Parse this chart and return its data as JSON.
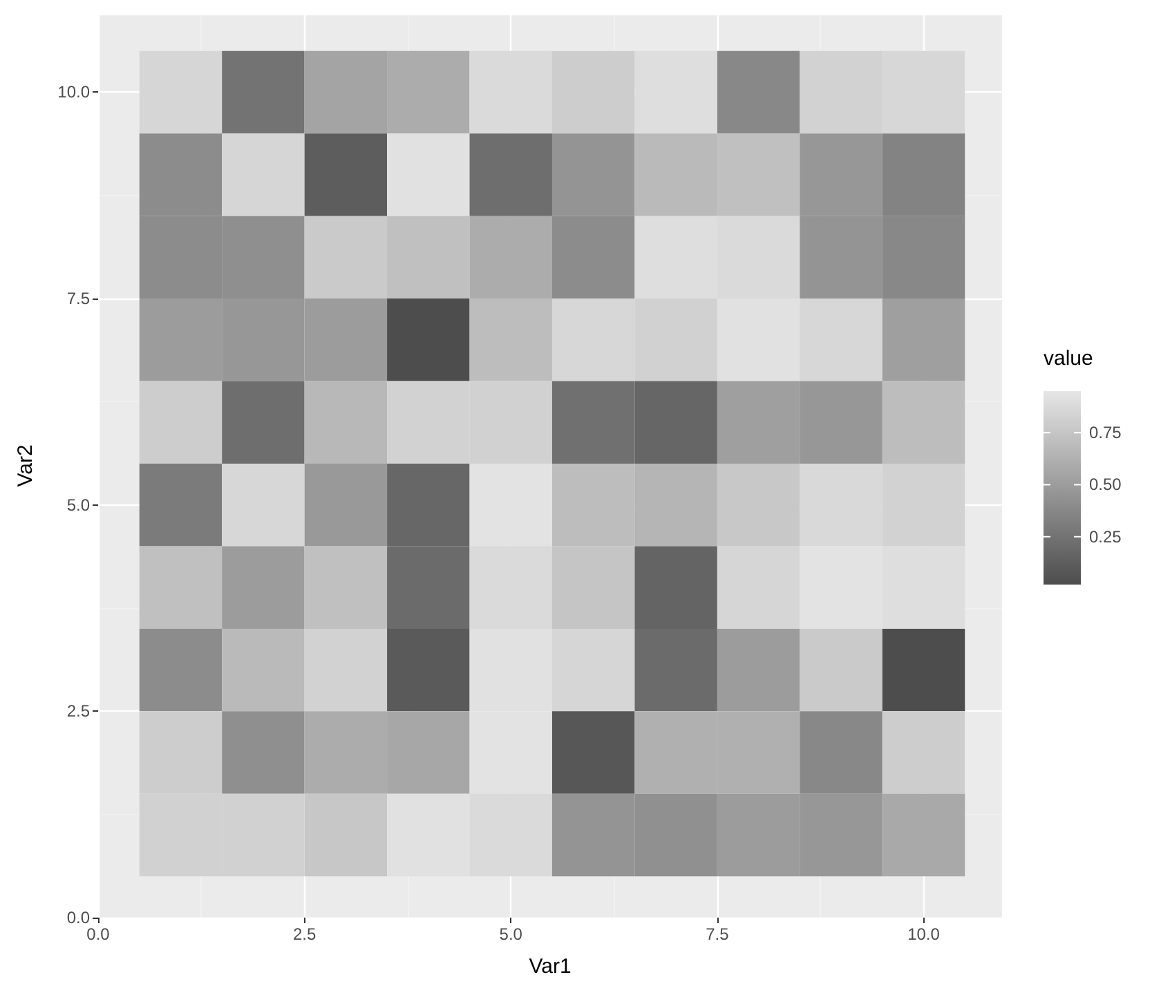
{
  "chart_data": {
    "type": "heatmap",
    "xlabel": "Var1",
    "ylabel": "Var2",
    "legend_title": "value",
    "x": [
      1,
      2,
      3,
      4,
      5,
      6,
      7,
      8,
      9,
      10
    ],
    "y": [
      10,
      9,
      8,
      7,
      6,
      5,
      4,
      3,
      2,
      1
    ],
    "cells": [
      [
        0.85,
        0.25,
        0.55,
        0.6,
        0.88,
        0.8,
        0.9,
        0.38,
        0.83,
        0.86
      ],
      [
        0.4,
        0.85,
        0.12,
        0.92,
        0.22,
        0.45,
        0.68,
        0.72,
        0.47,
        0.35
      ],
      [
        0.4,
        0.42,
        0.78,
        0.72,
        0.6,
        0.4,
        0.9,
        0.88,
        0.45,
        0.38
      ],
      [
        0.5,
        0.47,
        0.5,
        0.02,
        0.7,
        0.86,
        0.82,
        0.92,
        0.86,
        0.52
      ],
      [
        0.8,
        0.22,
        0.67,
        0.83,
        0.82,
        0.23,
        0.17,
        0.52,
        0.47,
        0.7
      ],
      [
        0.3,
        0.86,
        0.48,
        0.18,
        0.93,
        0.7,
        0.65,
        0.77,
        0.87,
        0.83
      ],
      [
        0.72,
        0.5,
        0.72,
        0.2,
        0.88,
        0.75,
        0.16,
        0.85,
        0.93,
        0.9
      ],
      [
        0.4,
        0.68,
        0.83,
        0.1,
        0.92,
        0.85,
        0.2,
        0.5,
        0.78,
        0.02
      ],
      [
        0.8,
        0.42,
        0.6,
        0.57,
        0.93,
        0.08,
        0.62,
        0.62,
        0.38,
        0.8
      ],
      [
        0.82,
        0.82,
        0.76,
        0.92,
        0.88,
        0.45,
        0.43,
        0.5,
        0.47,
        0.58
      ]
    ],
    "xlim": [
      0,
      10.95
    ],
    "ylim": [
      0,
      10.95
    ],
    "xticks": [
      {
        "value": 0,
        "label": "0.0"
      },
      {
        "value": 2.5,
        "label": "2.5"
      },
      {
        "value": 5,
        "label": "5.0"
      },
      {
        "value": 7.5,
        "label": "7.5"
      },
      {
        "value": 10,
        "label": "10.0"
      }
    ],
    "yticks": [
      {
        "value": 0,
        "label": "0.0"
      },
      {
        "value": 2.5,
        "label": "2.5"
      },
      {
        "value": 5,
        "label": "5.0"
      },
      {
        "value": 7.5,
        "label": "7.5"
      },
      {
        "value": 10,
        "label": "10.0"
      }
    ],
    "clim": [
      0.02,
      0.95
    ],
    "cticks": [
      {
        "value": 0.25,
        "label": "0.25"
      },
      {
        "value": 0.5,
        "label": "0.50"
      },
      {
        "value": 0.75,
        "label": "0.75"
      }
    ],
    "grid": true
  }
}
